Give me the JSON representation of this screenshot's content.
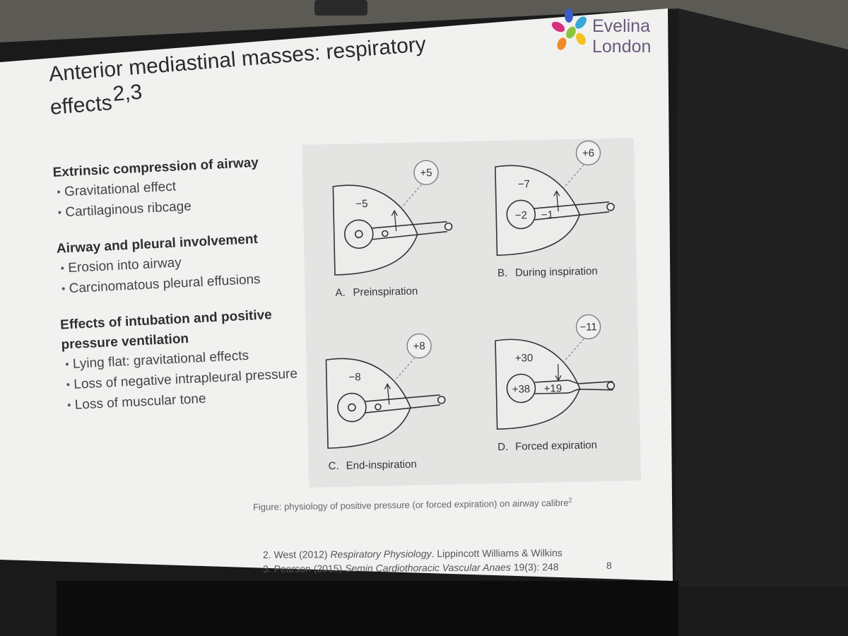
{
  "logo": [
    "Evelina",
    "London"
  ],
  "title": {
    "lines": [
      "Anterior mediastinal masses: respiratory",
      "effects"
    ],
    "superscript": "2,3"
  },
  "sections": [
    {
      "heading": [
        "Extrinsic compression of airway"
      ],
      "bullets": [
        "Gravitational effect",
        "Cartilaginous ribcage"
      ]
    },
    {
      "heading": [
        "Airway and pleural involvement"
      ],
      "bullets": [
        "Erosion into airway",
        "Carcinomatous pleural effusions"
      ]
    },
    {
      "heading": [
        "Effects of intubation and positive",
        "pressure ventilation"
      ],
      "bullets": [
        "Lying flat: gravitational effects",
        "Loss of negative intrapleural pressure",
        "Loss of muscular tone"
      ]
    }
  ],
  "figure": {
    "panels": [
      {
        "letter": "A.",
        "caption": "Preinspiration",
        "outside": "+5",
        "pleural": "−5"
      },
      {
        "letter": "B.",
        "caption": "During inspiration",
        "outside": "+6",
        "pleural": "−7",
        "alveolar": "−2",
        "airway": "−1"
      },
      {
        "letter": "C.",
        "caption": "End-inspiration",
        "outside": "+8",
        "pleural": "−8"
      },
      {
        "letter": "D.",
        "caption": "Forced expiration",
        "outside": "−11",
        "pleural": "+30",
        "alveolar": "+38",
        "airway": "+19"
      }
    ],
    "caption": {
      "text": "Figure: physiology of positive pressure (or forced expiration) on airway calibre",
      "superscript": "2"
    }
  },
  "references": [
    [
      "2. West (2012) ",
      "Respiratory Physiology",
      ". Lippincott Williams & Wilkins"
    ],
    [
      "3. Pearson (2015) ",
      "Semin Cardiothoracic Vascular Anaes",
      " 19(3): 248"
    ]
  ],
  "page_number": "8"
}
